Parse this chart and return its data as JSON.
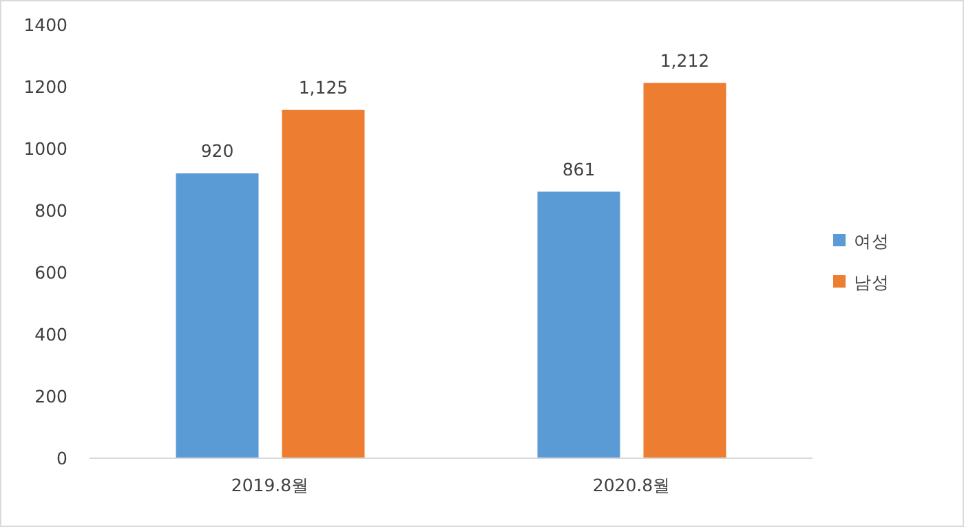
{
  "chart_data": {
    "type": "bar",
    "categories": [
      "2019.8월",
      "2020.8월"
    ],
    "series": [
      {
        "name": "여성",
        "color": "#5b9bd5",
        "values": [
          920,
          861
        ],
        "value_labels": [
          "920",
          "861"
        ]
      },
      {
        "name": "남성",
        "color": "#ed7d31",
        "values": [
          1125,
          1212
        ],
        "value_labels": [
          "1,125",
          "1,212"
        ]
      }
    ],
    "ylim": [
      0,
      1400
    ],
    "yticks": [
      0,
      200,
      400,
      600,
      800,
      1000,
      1200,
      1400
    ],
    "grid": false,
    "legend": "right"
  }
}
